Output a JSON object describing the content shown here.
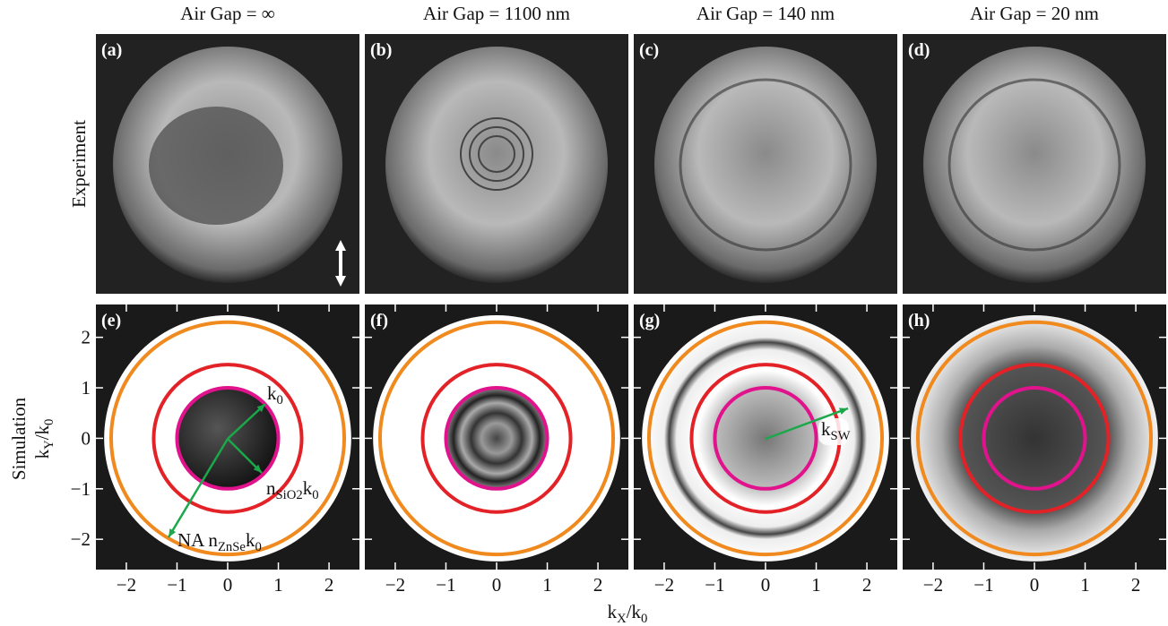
{
  "columns": [
    "Air Gap = ∞",
    "Air Gap = 1100 nm",
    "Air Gap = 140 nm",
    "Air Gap = 20 nm"
  ],
  "row_labels": [
    "Experiment",
    "Simulation"
  ],
  "panel_labels": [
    "(a)",
    "(b)",
    "(c)",
    "(d)",
    "(e)",
    "(f)",
    "(g)",
    "(h)"
  ],
  "axes": {
    "xlim": [
      -2.6,
      2.6
    ],
    "ylim": [
      -2.6,
      2.65
    ],
    "xticks": [
      {
        "value": -2,
        "label": "−2"
      },
      {
        "value": -1,
        "label": "−1"
      },
      0,
      1,
      2
    ],
    "yticks": [
      {
        "value": -2,
        "label": "−2"
      },
      {
        "value": -1,
        "label": "−1"
      },
      0,
      1,
      2
    ],
    "xlabel": [
      {
        "t": "k"
      },
      {
        "t": "X",
        "sub": true
      },
      {
        "t": "/k"
      },
      {
        "t": "0",
        "sub": true
      }
    ],
    "ylabel": [
      {
        "t": "k"
      },
      {
        "t": "Y",
        "sub": true
      },
      {
        "t": "/k"
      },
      {
        "t": "0",
        "sub": true
      }
    ]
  },
  "circles": [
    {
      "radius": 1,
      "color": "#e0138c"
    },
    {
      "radius": 1.46,
      "color": "#e32228"
    },
    {
      "radius": 2.3,
      "color": "#f08a1e"
    }
  ],
  "annotations": {
    "k0": [
      {
        "t": "k"
      },
      {
        "t": "0",
        "sub": true
      }
    ],
    "nsio2": [
      {
        "t": "n"
      },
      {
        "t": "SiO",
        "sub": true
      },
      {
        "t": "2",
        "sub": true
      },
      {
        "t": "k"
      },
      {
        "t": "0",
        "sub": true
      }
    ],
    "na": [
      {
        "t": "NA n"
      },
      {
        "t": "ZnSe",
        "sub": true
      },
      {
        "t": "k"
      },
      {
        "t": "0",
        "sub": true
      }
    ],
    "ksw": [
      {
        "t": "k"
      },
      {
        "t": "SW",
        "sub": true
      }
    ]
  }
}
